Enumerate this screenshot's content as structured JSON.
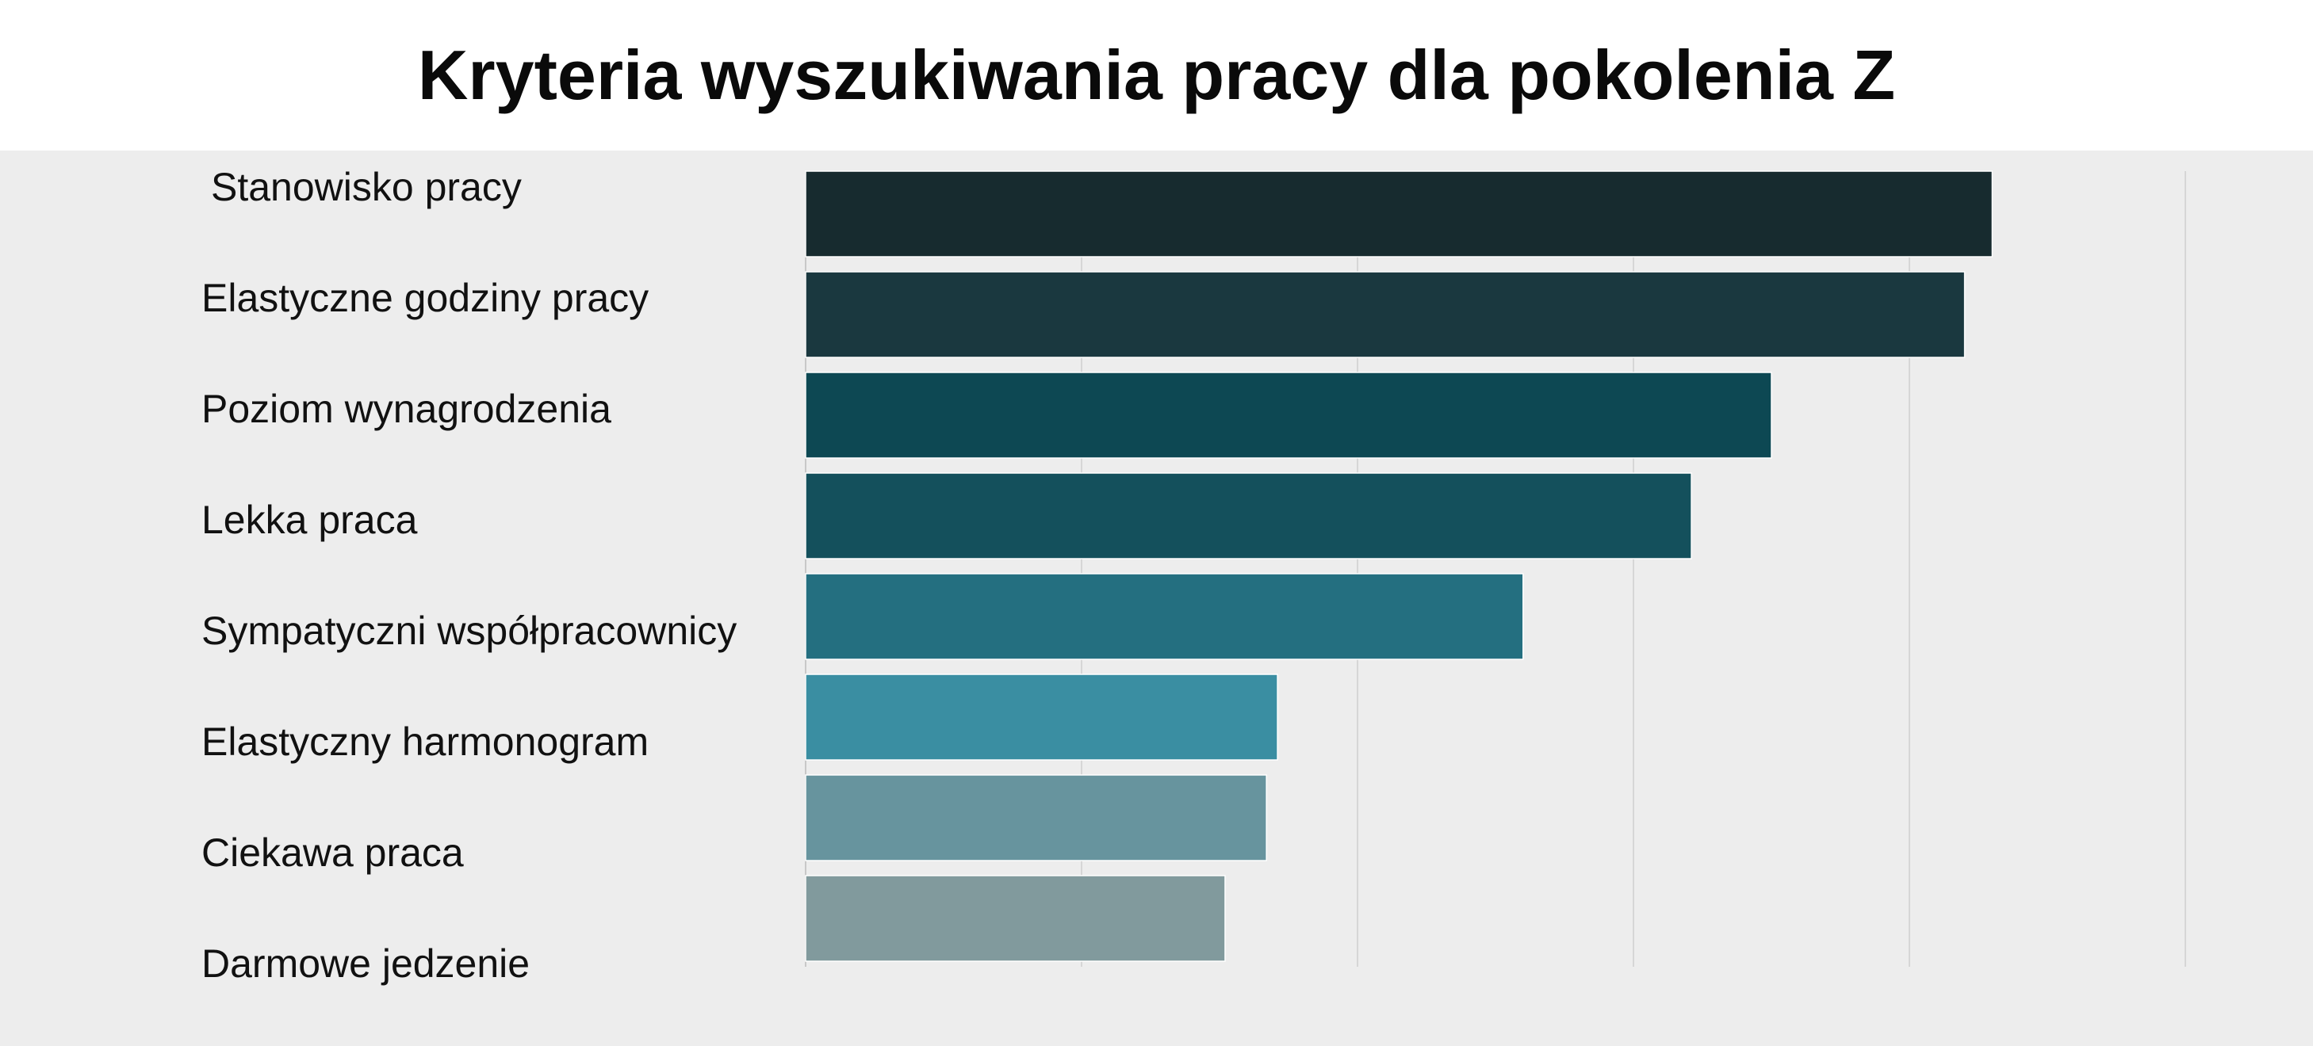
{
  "chart_data": {
    "type": "bar",
    "orientation": "horizontal",
    "title": "Kryteria wyszukiwania pracy dla pokolenia Z",
    "categories": [
      "Stanowisko pracy",
      "Elastyczne godziny pracy",
      "Poziom wynagrodzenia",
      "Lekka praca",
      "Sympatyczni współpracownicy",
      "Elastyczny harmonogram",
      "Ciekawa praca",
      "Darmowe jedzenie"
    ],
    "values": [
      43,
      42,
      35,
      32.1,
      26,
      17.1,
      16.7,
      15.2
    ],
    "xlim": [
      0,
      50
    ],
    "grid": true,
    "xlabel": "",
    "ylabel": "",
    "colors": [
      "#172b2f",
      "#1a383f",
      "#0d4853",
      "#14505c",
      "#246f80",
      "#3a8ea2",
      "#67949e",
      "#819a9d"
    ]
  }
}
